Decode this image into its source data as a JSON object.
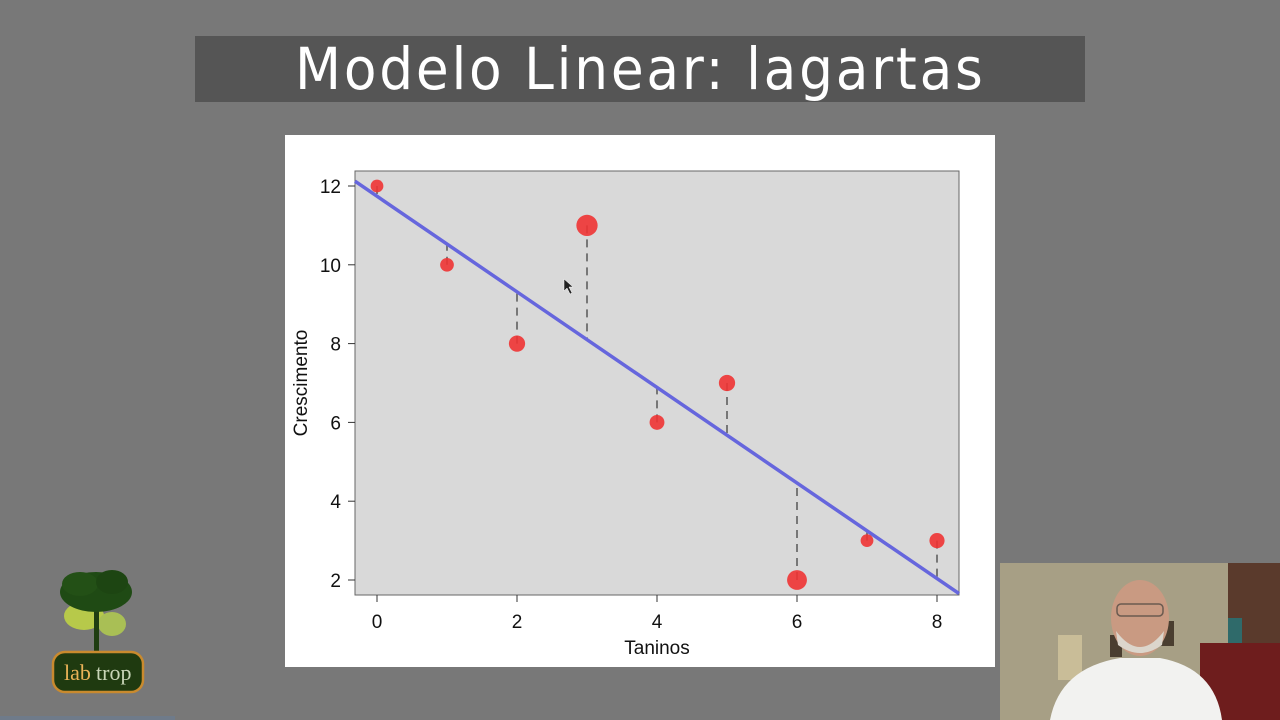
{
  "slide": {
    "title": "Modelo Linear: lagartas",
    "background_color": "#787878",
    "title_bar_color": "#555555"
  },
  "logo": {
    "text_part1": "lab",
    "text_part2": "trop"
  },
  "chart_data": {
    "type": "scatter",
    "title": "",
    "xlabel": "Taninos",
    "ylabel": "Crescimento",
    "x": [
      0,
      1,
      2,
      3,
      4,
      5,
      6,
      7,
      8
    ],
    "y": [
      12,
      10,
      8,
      11,
      6,
      7,
      2,
      3,
      3
    ],
    "xticks": [
      "0",
      "2",
      "4",
      "6",
      "8"
    ],
    "yticks": [
      "2",
      "4",
      "6",
      "8",
      "10",
      "12"
    ],
    "xlim": [
      -0.3,
      8.3
    ],
    "ylim": [
      1.6,
      12.4
    ],
    "grid": false,
    "legend": null,
    "panel_background": "#d9d9d9",
    "point_color": "#ee3333",
    "regression_line": {
      "intercept": 11.756,
      "slope": -1.217,
      "color": "#6666dd"
    },
    "residual_lines": {
      "style": "dashed",
      "color": "#777777",
      "note": "vertical dashed segments from each point to the fitted line"
    },
    "point_size_note": "point radius proportional to absolute residual"
  }
}
